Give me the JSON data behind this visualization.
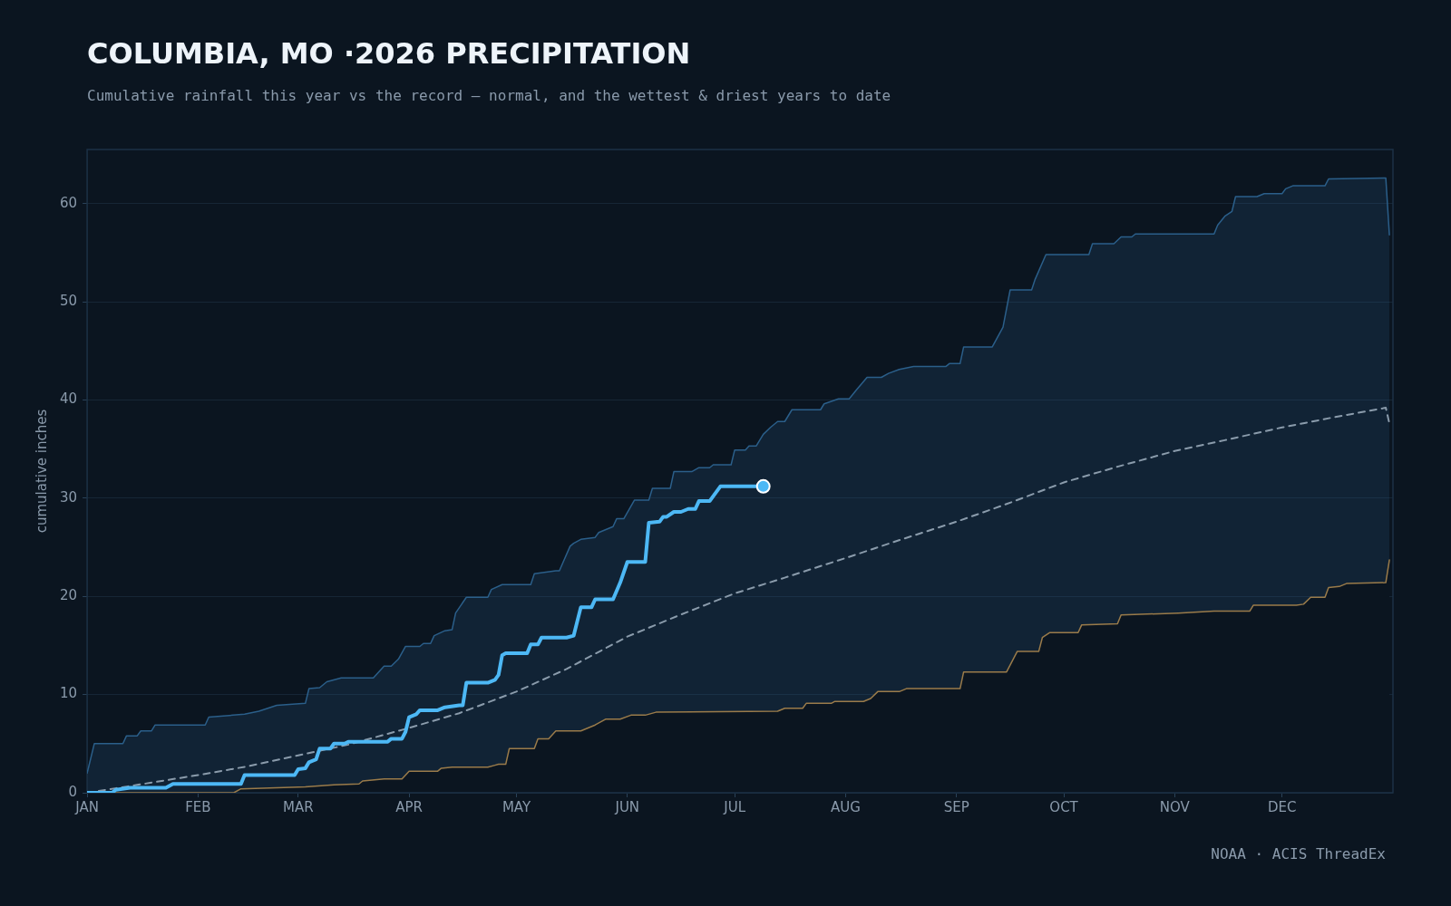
{
  "chart_data": {
    "type": "line",
    "title": "COLUMBIA, MO ·2026 PRECIPITATION",
    "subtitle": "Cumulative rainfall this year vs the record — normal, and the wettest & driest years to date",
    "ylabel": "cumulative inches",
    "xlim": [
      "--01-01",
      "--12-31"
    ],
    "xticks": [
      {
        "value": "--01-01",
        "label": "JAN"
      },
      {
        "value": "--02-01",
        "label": "FEB"
      },
      {
        "value": "--03-01",
        "label": "MAR"
      },
      {
        "value": "--04-01",
        "label": "APR"
      },
      {
        "value": "--05-01",
        "label": "MAY"
      },
      {
        "value": "--06-01",
        "label": "JUN"
      },
      {
        "value": "--07-01",
        "label": "JUL"
      },
      {
        "value": "--08-01",
        "label": "AUG"
      },
      {
        "value": "--09-01",
        "label": "SEP"
      },
      {
        "value": "--10-01",
        "label": "OCT"
      },
      {
        "value": "--11-01",
        "label": "NOV"
      },
      {
        "value": "--12-01",
        "label": "DEC"
      }
    ],
    "ylim": [
      0,
      65.5
    ],
    "yticks": [
      0,
      10,
      20,
      30,
      40,
      50,
      60
    ],
    "grid": "y",
    "legend": false,
    "annotations": [
      "NOAA · ACIS ThreadEx"
    ],
    "series": [
      {
        "type": "area",
        "color": "#2b5f8a",
        "x": [
          "--01-01",
          "--01-03",
          "--01-11",
          "--01-12",
          "--01-15",
          "--01-16",
          "--01-19",
          "--01-20",
          "--02-03",
          "--02-04",
          "--02-14",
          "--02-18",
          "--02-23",
          "--03-03",
          "--03-04",
          "--03-07",
          "--03-09",
          "--03-13",
          "--03-22",
          "--03-25",
          "--03-27",
          "--03-29",
          "--03-31",
          "--04-04",
          "--04-05",
          "--04-07",
          "--04-08",
          "--04-11",
          "--04-13",
          "--04-14",
          "--04-17",
          "--04-23",
          "--04-24",
          "--04-27",
          "--05-05",
          "--05-06",
          "--05-12",
          "--05-13",
          "--05-16",
          "--05-17",
          "--05-19",
          "--05-23",
          "--05-24",
          "--05-28",
          "--05-29",
          "--05-31",
          "--06-03",
          "--06-07",
          "--06-08",
          "--06-13",
          "--06-14",
          "--06-19",
          "--06-21",
          "--06-24",
          "--06-25",
          "--06-30",
          "--07-01",
          "--07-04",
          "--07-05",
          "--07-07",
          "--07-09",
          "--07-11",
          "--07-13",
          "--07-15",
          "--07-17",
          "--07-25",
          "--07-26",
          "--07-30",
          "--08-02",
          "--08-04",
          "--08-07",
          "--08-11",
          "--08-13",
          "--08-16",
          "--08-20",
          "--08-29",
          "--08-30",
          "--09-02",
          "--09-03",
          "--09-11",
          "--09-14",
          "--09-16",
          "--09-22",
          "--09-23",
          "--09-26",
          "--10-08",
          "--10-09",
          "--10-15",
          "--10-17",
          "--10-20",
          "--10-21",
          "--11-12",
          "--11-13",
          "--11-15",
          "--11-17",
          "--11-18",
          "--11-24",
          "--11-26",
          "--12-01",
          "--12-02",
          "--12-04",
          "--12-13",
          "--12-14",
          "--12-30",
          "--12-31"
        ],
        "values": [
          2.0,
          5.0,
          5.0,
          5.8,
          5.8,
          6.3,
          6.3,
          6.9,
          6.9,
          7.7,
          8.0,
          8.3,
          8.9,
          9.1,
          10.6,
          10.7,
          11.3,
          11.7,
          11.7,
          12.9,
          12.9,
          13.6,
          14.9,
          14.9,
          15.2,
          15.2,
          16.0,
          16.5,
          16.6,
          18.3,
          19.9,
          19.9,
          20.7,
          21.2,
          21.2,
          22.3,
          22.6,
          22.6,
          25.1,
          25.4,
          25.8,
          26.0,
          26.5,
          27.1,
          27.9,
          27.9,
          29.8,
          29.8,
          31.0,
          31.0,
          32.7,
          32.7,
          33.1,
          33.1,
          33.4,
          33.4,
          34.9,
          34.9,
          35.3,
          35.3,
          36.5,
          37.2,
          37.8,
          37.8,
          39.0,
          39.0,
          39.6,
          40.1,
          40.1,
          41.0,
          42.3,
          42.3,
          42.7,
          43.1,
          43.4,
          43.4,
          43.7,
          43.7,
          45.4,
          45.4,
          47.4,
          51.2,
          51.2,
          52.3,
          54.8,
          54.8,
          55.9,
          55.9,
          56.6,
          56.6,
          56.9,
          56.9,
          57.8,
          58.7,
          59.2,
          60.7,
          60.7,
          61.0,
          61.0,
          61.5,
          61.8,
          61.8,
          62.5,
          62.6,
          56.8
        ]
      },
      {
        "type": "area",
        "color": "#9a7b4a",
        "x": [
          "--01-01",
          "--02-11",
          "--02-13",
          "--03-03",
          "--03-11",
          "--03-18",
          "--03-19",
          "--03-25",
          "--03-30",
          "--04-01",
          "--04-09",
          "--04-10",
          "--04-13",
          "--04-23",
          "--04-25",
          "--04-26",
          "--04-28",
          "--04-29",
          "--05-06",
          "--05-07",
          "--05-10",
          "--05-12",
          "--05-19",
          "--05-23",
          "--05-26",
          "--05-30",
          "--06-02",
          "--06-06",
          "--06-09",
          "--07-13",
          "--07-15",
          "--07-20",
          "--07-21",
          "--07-28",
          "--07-29",
          "--08-06",
          "--08-08",
          "--08-10",
          "--08-16",
          "--08-18",
          "--09-02",
          "--09-03",
          "--09-15",
          "--09-18",
          "--09-24",
          "--09-25",
          "--09-27",
          "--10-05",
          "--10-06",
          "--10-16",
          "--10-17",
          "--11-02",
          "--11-12",
          "--11-22",
          "--11-23",
          "--12-05",
          "--12-07",
          "--12-09",
          "--12-13",
          "--12-14",
          "--12-17",
          "--12-19",
          "--12-30",
          "--12-31"
        ],
        "values": [
          0,
          0,
          0.4,
          0.6,
          0.8,
          0.9,
          1.2,
          1.4,
          1.4,
          2.2,
          2.2,
          2.5,
          2.6,
          2.6,
          2.8,
          2.9,
          2.9,
          4.5,
          4.5,
          5.5,
          5.5,
          6.3,
          6.3,
          6.9,
          7.5,
          7.5,
          7.9,
          7.9,
          8.2,
          8.3,
          8.6,
          8.6,
          9.1,
          9.1,
          9.3,
          9.3,
          9.6,
          10.3,
          10.3,
          10.6,
          10.6,
          12.3,
          12.3,
          14.4,
          14.4,
          15.8,
          16.3,
          16.3,
          17.1,
          17.2,
          18.1,
          18.3,
          18.5,
          18.5,
          19.1,
          19.1,
          19.2,
          19.9,
          19.9,
          20.9,
          21.0,
          21.3,
          21.4,
          23.7
        ]
      },
      {
        "type": "line",
        "color": "#8a9bab",
        "line_style": "dashed",
        "x": [
          "--01-01",
          "--01-15",
          "--02-01",
          "--02-15",
          "--03-01",
          "--03-15",
          "--04-01",
          "--04-15",
          "--05-01",
          "--05-15",
          "--06-01",
          "--06-15",
          "--07-01",
          "--07-15",
          "--08-01",
          "--08-15",
          "--09-01",
          "--09-15",
          "--10-01",
          "--10-16",
          "--11-01",
          "--11-15",
          "--12-01",
          "--12-15",
          "--12-30",
          "--12-31"
        ],
        "values": [
          0,
          0.8,
          1.8,
          2.7,
          3.8,
          4.9,
          6.6,
          8.1,
          10.3,
          12.6,
          15.9,
          18.0,
          20.3,
          21.9,
          23.9,
          25.6,
          27.6,
          29.4,
          31.6,
          33.2,
          34.8,
          35.9,
          37.2,
          38.2,
          39.2,
          37.6
        ]
      },
      {
        "type": "line",
        "color": "#4db8f5",
        "x": [
          "--01-01",
          "--01-08",
          "--01-09",
          "--01-13",
          "--01-23",
          "--01-25",
          "--02-13",
          "--02-14",
          "--02-28",
          "--03-01",
          "--03-03",
          "--03-04",
          "--03-06",
          "--03-07",
          "--03-10",
          "--03-11",
          "--03-14",
          "--03-15",
          "--03-26",
          "--03-27",
          "--03-30",
          "--03-31",
          "--04-01",
          "--04-03",
          "--04-04",
          "--04-09",
          "--04-11",
          "--04-15",
          "--04-16",
          "--04-17",
          "--04-23",
          "--04-25",
          "--04-26",
          "--04-27",
          "--04-28",
          "--05-04",
          "--05-05",
          "--05-07",
          "--05-08",
          "--05-15",
          "--05-17",
          "--05-19",
          "--05-22",
          "--05-23",
          "--05-28",
          "--05-30",
          "--06-01",
          "--06-06",
          "--06-07",
          "--06-10",
          "--06-11",
          "--06-12",
          "--06-14",
          "--06-16",
          "--06-18",
          "--06-20",
          "--06-21",
          "--06-24",
          "--06-27",
          "--07-04",
          "--07-09"
        ],
        "values": [
          0,
          0,
          0.3,
          0.5,
          0.5,
          0.9,
          0.9,
          1.8,
          1.8,
          2.4,
          2.5,
          3.1,
          3.4,
          4.5,
          4.5,
          5.0,
          5.0,
          5.2,
          5.2,
          5.5,
          5.5,
          6.2,
          7.7,
          8.0,
          8.4,
          8.4,
          8.7,
          8.9,
          8.9,
          11.2,
          11.2,
          11.5,
          12.0,
          14.0,
          14.2,
          14.2,
          15.1,
          15.1,
          15.8,
          15.8,
          16.0,
          18.9,
          18.9,
          19.7,
          19.7,
          21.4,
          23.5,
          23.5,
          27.5,
          27.6,
          28.1,
          28.1,
          28.6,
          28.6,
          28.9,
          28.9,
          29.7,
          29.7,
          31.2,
          31.2,
          31.2
        ]
      },
      {
        "type": "scatter",
        "color": "#4db8f5",
        "marker": "circle",
        "x": [
          "--07-09"
        ],
        "values": [
          31.2
        ]
      }
    ]
  }
}
